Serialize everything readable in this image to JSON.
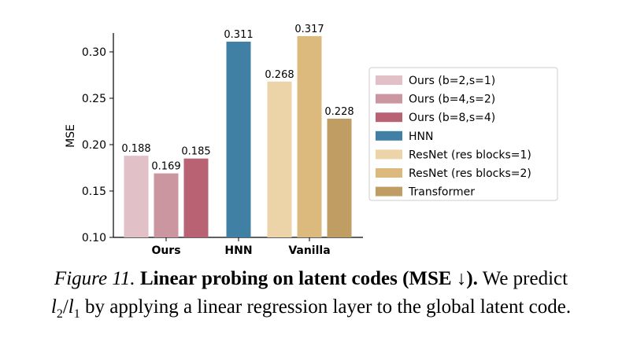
{
  "chart_data": {
    "type": "bar",
    "title": "",
    "xlabel": "",
    "ylabel": "MSE",
    "ylim": [
      0.1,
      0.32
    ],
    "yticks": [
      "0.10",
      "0.15",
      "0.20",
      "0.25",
      "0.30"
    ],
    "groups": [
      {
        "label": "Ours",
        "series": [
          "Ours (b=2,s=1)",
          "Ours (b=4,s=2)",
          "Ours (b=8,s=4)"
        ]
      },
      {
        "label": "HNN",
        "series": [
          "HNN"
        ]
      },
      {
        "label": "Vanilla",
        "series": [
          "ResNet (res blocks=1)",
          "ResNet (res blocks=2)",
          "Transformer"
        ]
      }
    ],
    "series": [
      {
        "name": "Ours (b=2,s=1)",
        "value": 0.188,
        "label": "0.188",
        "color": "#e2c0c8"
      },
      {
        "name": "Ours (b=4,s=2)",
        "value": 0.169,
        "label": "0.169",
        "color": "#cc96a0"
      },
      {
        "name": "Ours (b=8,s=4)",
        "value": 0.185,
        "label": "0.185",
        "color": "#b86273"
      },
      {
        "name": "HNN",
        "value": 0.311,
        "label": "0.311",
        "color": "#3f80a4"
      },
      {
        "name": "ResNet (res blocks=1)",
        "value": 0.268,
        "label": "0.268",
        "color": "#ecd3a8"
      },
      {
        "name": "ResNet (res blocks=2)",
        "value": 0.317,
        "label": "0.317",
        "color": "#dcba7d"
      },
      {
        "name": "Transformer",
        "value": 0.228,
        "label": "0.228",
        "color": "#c09e63"
      }
    ],
    "legend_position": "right"
  },
  "caption": {
    "figure_label": "Figure 11.",
    "title_bold": "Linear probing on latent codes (MSE ↓).",
    "text_line1": "We predict",
    "math": "l2/l1",
    "text_line2": "by applying a linear regression layer to the global latent code."
  }
}
